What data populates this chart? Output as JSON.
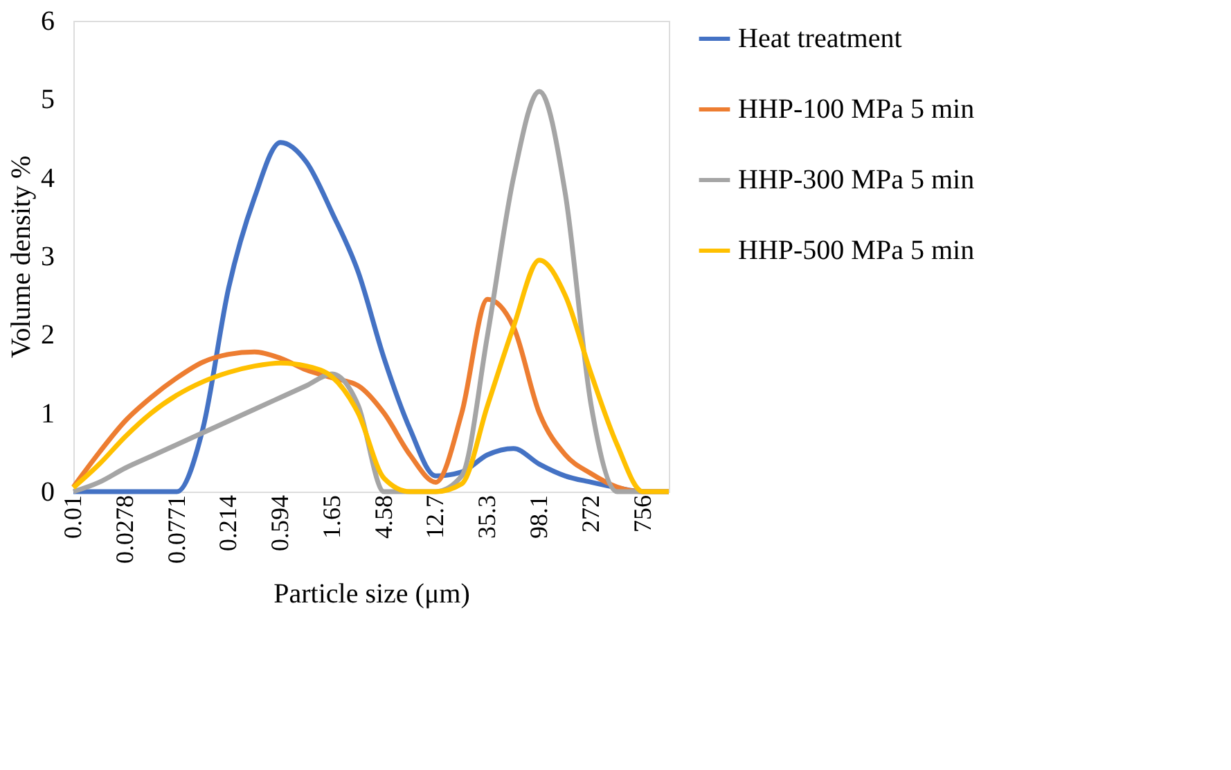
{
  "chart_data": {
    "type": "line",
    "xlabel": "Particle size (μm)",
    "ylabel": "Volume density %",
    "categories": [
      "0.01",
      null,
      "0.0278",
      null,
      "0.0771",
      null,
      "0.214",
      null,
      "0.594",
      null,
      "1.65",
      null,
      "4.58",
      null,
      "12.7",
      null,
      "35.3",
      null,
      "98.1",
      null,
      "272",
      null,
      "756",
      null
    ],
    "series": [
      {
        "name": "Heat treatment",
        "color": "#4472c4",
        "values": [
          0,
          0,
          0,
          0,
          0,
          0.8,
          2.6,
          3.75,
          4.45,
          4.2,
          3.55,
          2.8,
          1.7,
          0.8,
          0.2,
          0.25,
          0.47,
          0.55,
          0.35,
          0.2,
          0.12,
          0.05,
          0,
          0
        ]
      },
      {
        "name": "HHP-100 MPa 5 min",
        "color": "#ed7d31",
        "values": [
          0.06,
          0.5,
          0.9,
          1.2,
          1.45,
          1.65,
          1.75,
          1.78,
          1.7,
          1.55,
          1.45,
          1.35,
          1.0,
          0.47,
          0.12,
          1.0,
          2.45,
          2.1,
          1.0,
          0.47,
          0.23,
          0.06,
          0,
          0
        ]
      },
      {
        "name": "HHP-300 MPa 5 min",
        "color": "#a5a5a5",
        "values": [
          0,
          0.12,
          0.3,
          0.45,
          0.6,
          0.75,
          0.9,
          1.05,
          1.2,
          1.35,
          1.5,
          1.1,
          0,
          0,
          0,
          0.2,
          2.0,
          4.0,
          5.1,
          3.8,
          1.1,
          0,
          0,
          0
        ]
      },
      {
        "name": "HHP-500 MPa 5 min",
        "color": "#ffc000",
        "values": [
          0.05,
          0.35,
          0.7,
          1.0,
          1.23,
          1.4,
          1.52,
          1.6,
          1.64,
          1.6,
          1.46,
          1.0,
          0.17,
          0,
          0,
          0.1,
          1.1,
          2.1,
          2.95,
          2.5,
          1.5,
          0.6,
          0,
          0
        ]
      }
    ],
    "ylim": [
      0,
      6
    ],
    "yticks": [
      0,
      1,
      2,
      3,
      4,
      5,
      6
    ],
    "grid": false,
    "legend": "right",
    "marker": "none",
    "line_style": "solid"
  }
}
